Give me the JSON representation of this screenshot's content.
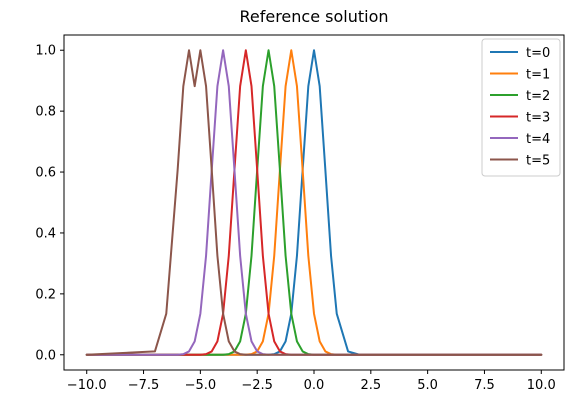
{
  "chart_data": {
    "type": "line",
    "title": "Reference solution",
    "xlabel": "",
    "ylabel": "",
    "xlim": [
      -11,
      11
    ],
    "ylim": [
      -0.05,
      1.05
    ],
    "xticks": [
      -10.0,
      -7.5,
      -5.0,
      -2.5,
      0.0,
      2.5,
      5.0,
      7.5,
      10.0
    ],
    "xtick_labels": [
      "−10.0",
      "−7.5",
      "−5.0",
      "−2.5",
      "0.0",
      "2.5",
      "5.0",
      "7.5",
      "10.0"
    ],
    "yticks": [
      0.0,
      0.2,
      0.4,
      0.6,
      0.8,
      1.0
    ],
    "ytick_labels": [
      "0.0",
      "0.2",
      "0.4",
      "0.6",
      "0.8",
      "1.0"
    ],
    "grid": false,
    "legend_position": "top-right",
    "x": [
      -10.0,
      -7.0,
      -6.5,
      -6.0,
      -5.75,
      -5.5,
      -5.25,
      -5.0,
      -4.75,
      -4.5,
      -4.25,
      -4.0,
      -3.75,
      -3.5,
      -3.25,
      -3.0,
      -2.75,
      -2.5,
      -2.25,
      -2.0,
      -1.75,
      -1.5,
      -1.25,
      -1.0,
      -0.75,
      -0.5,
      -0.25,
      0.0,
      0.25,
      0.5,
      0.75,
      1.0,
      1.5,
      2.0,
      3.0,
      10.0
    ],
    "series": [
      {
        "name": "t=0",
        "color": "#1f77b4",
        "values": [
          0.0,
          0.0,
          0.0,
          0.0,
          0.0,
          0.0,
          0.0,
          0.0,
          0.0,
          0.0,
          0.0,
          0.0,
          0.0,
          0.0,
          0.0,
          0.0,
          0.0,
          0.0,
          0.0,
          0.0,
          0.002,
          0.011,
          0.044,
          0.135,
          0.325,
          0.607,
          0.882,
          1.0,
          0.882,
          0.607,
          0.325,
          0.135,
          0.011,
          0.0,
          0.0,
          0.0
        ]
      },
      {
        "name": "t=1",
        "color": "#ff7f0e",
        "values": [
          0.0,
          0.0,
          0.0,
          0.0,
          0.0,
          0.0,
          0.0,
          0.0,
          0.0,
          0.0,
          0.0,
          0.0,
          0.0,
          0.0,
          0.0,
          0.0,
          0.002,
          0.011,
          0.044,
          0.135,
          0.325,
          0.607,
          0.882,
          1.0,
          0.882,
          0.607,
          0.325,
          0.135,
          0.044,
          0.011,
          0.002,
          0.0,
          0.0,
          0.0,
          0.0,
          0.0
        ]
      },
      {
        "name": "t=2",
        "color": "#2ca02c",
        "values": [
          0.0,
          0.0,
          0.0,
          0.0,
          0.0,
          0.0,
          0.0,
          0.0,
          0.0,
          0.0,
          0.0,
          0.0,
          0.002,
          0.011,
          0.044,
          0.135,
          0.325,
          0.607,
          0.882,
          1.0,
          0.882,
          0.607,
          0.325,
          0.135,
          0.044,
          0.011,
          0.002,
          0.0,
          0.0,
          0.0,
          0.0,
          0.0,
          0.0,
          0.0,
          0.0,
          0.0
        ]
      },
      {
        "name": "t=3",
        "color": "#d62728",
        "values": [
          0.0,
          0.0,
          0.0,
          0.0,
          0.0,
          0.0,
          0.0,
          0.0,
          0.002,
          0.011,
          0.044,
          0.135,
          0.325,
          0.607,
          0.882,
          1.0,
          0.882,
          0.607,
          0.325,
          0.135,
          0.044,
          0.011,
          0.002,
          0.0,
          0.0,
          0.0,
          0.0,
          0.0,
          0.0,
          0.0,
          0.0,
          0.0,
          0.0,
          0.0,
          0.0,
          0.0
        ]
      },
      {
        "name": "t=4",
        "color": "#9467bd",
        "values": [
          0.0,
          0.0,
          0.0,
          0.0,
          0.002,
          0.011,
          0.044,
          0.135,
          0.325,
          0.607,
          0.882,
          1.0,
          0.882,
          0.607,
          0.325,
          0.135,
          0.044,
          0.011,
          0.002,
          0.0,
          0.0,
          0.0,
          0.0,
          0.0,
          0.0,
          0.0,
          0.0,
          0.0,
          0.0,
          0.0,
          0.0,
          0.0,
          0.0,
          0.0,
          0.0,
          0.0
        ]
      },
      {
        "name": "t=5",
        "color": "#8c564b",
        "values": [
          0.0,
          0.011,
          0.135,
          0.607,
          0.882,
          1.0,
          0.882,
          1.0,
          0.882,
          0.607,
          0.325,
          0.135,
          0.044,
          0.011,
          0.002,
          0.0,
          0.0,
          0.0,
          0.0,
          0.0,
          0.0,
          0.0,
          0.0,
          0.0,
          0.0,
          0.0,
          0.0,
          0.0,
          0.0,
          0.0,
          0.0,
          0.0,
          0.0,
          0.0,
          0.0,
          0.0
        ]
      }
    ]
  }
}
